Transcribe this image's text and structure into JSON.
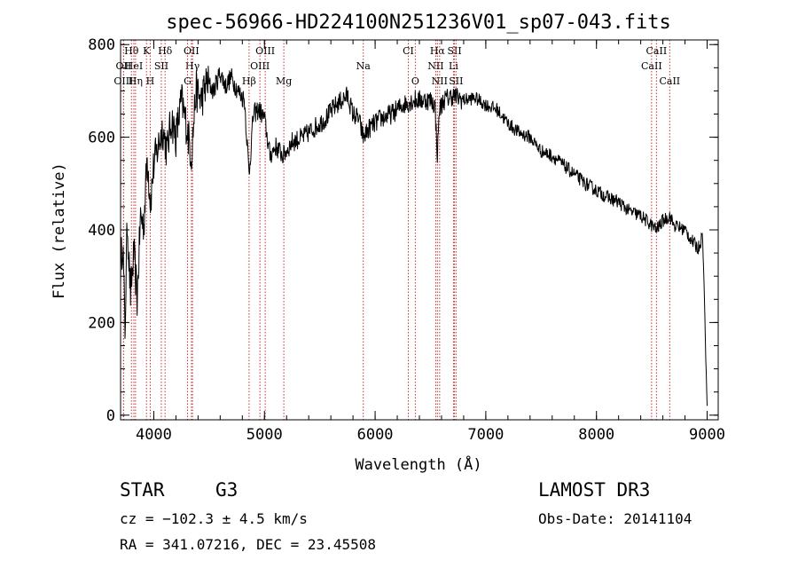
{
  "chart_data": {
    "type": "line",
    "title": "spec-56966-HD224100N251236V01_sp07-043.fits",
    "xlabel": "Wavelength (Å)",
    "ylabel": "Flux (relative)",
    "xlim": [
      3700,
      9100
    ],
    "ylim": [
      -10,
      810
    ],
    "xticks": [
      4000,
      5000,
      6000,
      7000,
      8000,
      9000
    ],
    "yticks": [
      0,
      200,
      400,
      600,
      800
    ],
    "series": [
      {
        "name": "flux",
        "x": [
          3700,
          3720,
          3740,
          3760,
          3790,
          3820,
          3850,
          3880,
          3910,
          3940,
          3970,
          4000,
          4040,
          4080,
          4120,
          4160,
          4200,
          4250,
          4300,
          4340,
          4380,
          4430,
          4480,
          4540,
          4600,
          4650,
          4700,
          4760,
          4820,
          4861,
          4900,
          4950,
          5000,
          5050,
          5100,
          5170,
          5250,
          5350,
          5450,
          5550,
          5650,
          5750,
          5800,
          5850,
          5893,
          5950,
          6050,
          6150,
          6250,
          6350,
          6450,
          6500,
          6540,
          6563,
          6580,
          6620,
          6700,
          6800,
          6900,
          7000,
          7100,
          7200,
          7300,
          7400,
          7500,
          7600,
          7700,
          7800,
          7900,
          8000,
          8100,
          8200,
          8300,
          8400,
          8498,
          8542,
          8600,
          8662,
          8700,
          8800,
          8880,
          8920,
          8960,
          9000
        ],
        "y": [
          320,
          380,
          180,
          420,
          260,
          350,
          250,
          430,
          410,
          560,
          460,
          540,
          580,
          620,
          570,
          640,
          600,
          680,
          620,
          560,
          700,
          680,
          720,
          700,
          740,
          710,
          730,
          700,
          680,
          520,
          650,
          660,
          640,
          560,
          580,
          560,
          590,
          600,
          620,
          640,
          670,
          690,
          650,
          640,
          600,
          620,
          640,
          650,
          670,
          680,
          680,
          680,
          670,
          560,
          660,
          680,
          690,
          680,
          685,
          670,
          660,
          630,
          610,
          600,
          570,
          560,
          540,
          520,
          500,
          485,
          470,
          460,
          440,
          430,
          410,
          400,
          420,
          430,
          410,
          400,
          370,
          360,
          390,
          20
        ]
      }
    ],
    "line_markers": [
      {
        "label": "Hθ",
        "wavelength": 3798,
        "row": 1
      },
      {
        "label": "K",
        "wavelength": 3934,
        "row": 1
      },
      {
        "label": "Hδ",
        "wavelength": 4102,
        "row": 1
      },
      {
        "label": "OII",
        "wavelength": 4340,
        "row": 1
      },
      {
        "label": "OIII",
        "wavelength": 5007,
        "row": 1
      },
      {
        "label": "CI",
        "wavelength": 6300,
        "row": 1
      },
      {
        "label": "Hα",
        "wavelength": 6563,
        "row": 1
      },
      {
        "label": "SII",
        "wavelength": 6717,
        "row": 1
      },
      {
        "label": "CaII",
        "wavelength": 8542,
        "row": 1
      },
      {
        "label": "OII",
        "wavelength": 3727,
        "row": 2
      },
      {
        "label": "HeI",
        "wavelength": 3820,
        "row": 2
      },
      {
        "label": "SII",
        "wavelength": 4068,
        "row": 2
      },
      {
        "label": "Hγ",
        "wavelength": 4350,
        "row": 2
      },
      {
        "label": "OIII",
        "wavelength": 4959,
        "row": 2
      },
      {
        "label": "Na",
        "wavelength": 5893,
        "row": 2
      },
      {
        "label": "NII",
        "wavelength": 6548,
        "row": 2
      },
      {
        "label": "Li",
        "wavelength": 6708,
        "row": 2
      },
      {
        "label": "CaII",
        "wavelength": 8498,
        "row": 2
      },
      {
        "label": "OIII",
        "wavelength": 3727,
        "row": 3
      },
      {
        "label": "Hη",
        "wavelength": 3835,
        "row": 3
      },
      {
        "label": "H",
        "wavelength": 3968,
        "row": 3
      },
      {
        "label": "G",
        "wavelength": 4305,
        "row": 3
      },
      {
        "label": "Hβ",
        "wavelength": 4861,
        "row": 3
      },
      {
        "label": "Mg",
        "wavelength": 5175,
        "row": 3
      },
      {
        "label": "O",
        "wavelength": 6363,
        "row": 3
      },
      {
        "label": "NII",
        "wavelength": 6583,
        "row": 3
      },
      {
        "label": "SII",
        "wavelength": 6731,
        "row": 3
      },
      {
        "label": "CaII",
        "wavelength": 8662,
        "row": 3
      }
    ]
  },
  "info": {
    "object_type": "STAR",
    "subclass": "G3",
    "survey": "LAMOST DR3",
    "redshift": "cz = −102.3 ± 4.5 km/s",
    "obs_date": "Obs-Date: 20141104",
    "coords": "RA = 341.07216, DEC =  23.45508"
  }
}
